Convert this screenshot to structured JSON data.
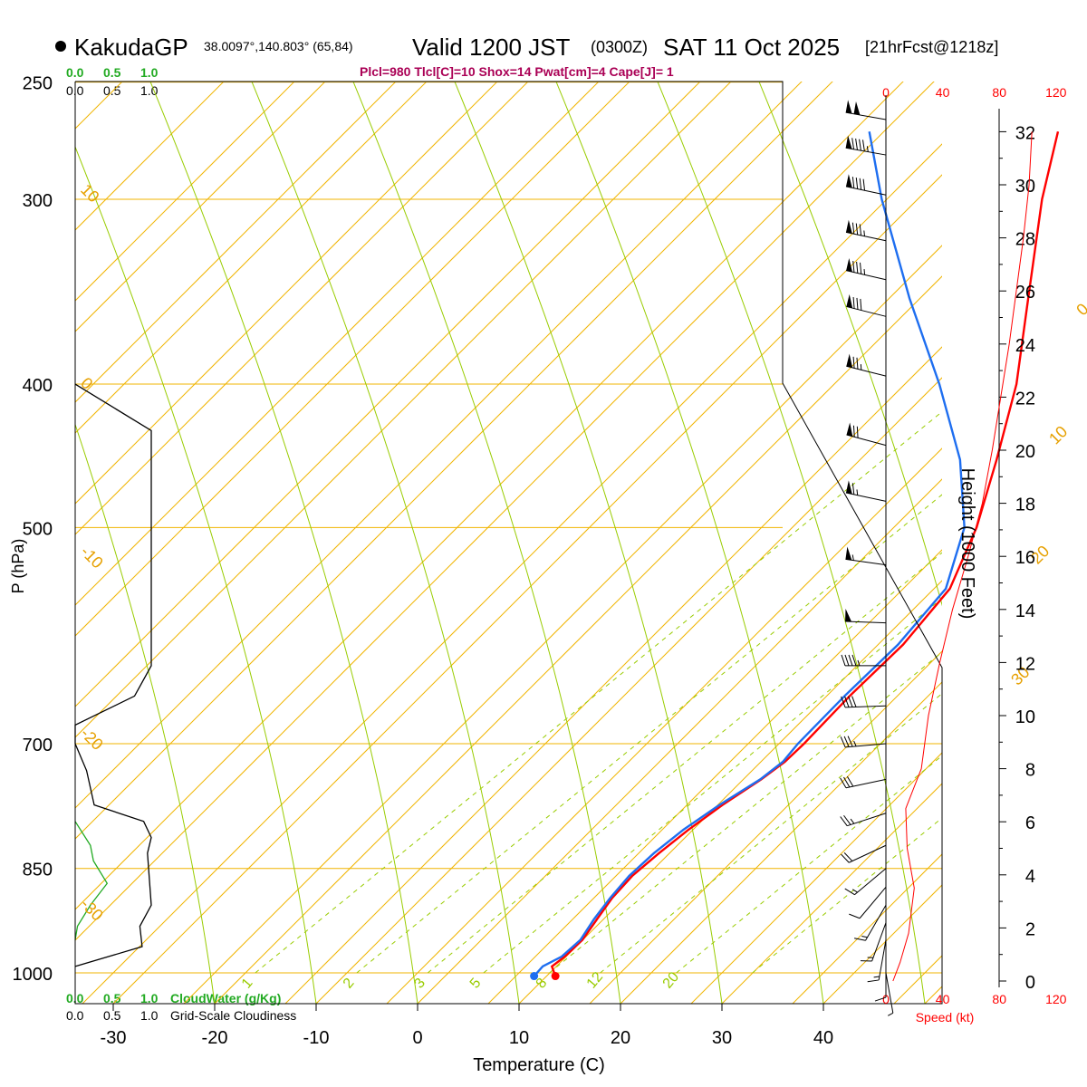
{
  "header": {
    "station_name": "KakudaGP",
    "station_coords": "38.0097°,140.803° (65,84)",
    "valid_label": "Valid 1200 JST",
    "utc_label": "(0300Z)",
    "date_label": "SAT 11 Oct 2025",
    "forecast_label": "[21hrFcst@1218z]",
    "indices": "Plcl=980 Tlcl[C]=10 Shox=14 Pwat[cm]=4 Cape[J]= 1"
  },
  "legend": {
    "cloudwater_ticks": [
      "0.0",
      "0.5",
      "1.0"
    ],
    "cloudiness_ticks": [
      "0.0",
      "0.5",
      "1.0"
    ],
    "cloudwater_label": "CloudWater (g/Kg)",
    "cloudiness_label": "Grid-Scale Cloudiness"
  },
  "colors": {
    "temperature": "#ff0000",
    "dewpoint": "#1e6ef0",
    "isotherm": "#f0b400",
    "mixing_ratio": "#99cc00",
    "cloudwater": "#22aa22",
    "cloudiness": "#000000",
    "speed": "#ff0000"
  },
  "chart_data": {
    "type": "line",
    "title": "Skew-T log-P sounding, KakudaGP",
    "xlabel": "Temperature (C)",
    "ylabel": "P (hPa)",
    "pressure_levels": [
      250,
      300,
      400,
      500,
      700,
      850,
      1000
    ],
    "pressure_tick_labels": [
      "250",
      "300",
      "400",
      "500",
      "700",
      "850",
      "1000"
    ],
    "temperature_ticks": [
      -30,
      -20,
      -10,
      0,
      10,
      20,
      30,
      40
    ],
    "temperature_tick_labels": [
      "-30",
      "-20",
      "-10",
      "0",
      "10",
      "20",
      "30",
      "40"
    ],
    "isotherm_labels": [
      {
        "text": "10",
        "temp": 10,
        "p": 296
      },
      {
        "text": "0",
        "temp": 0,
        "p": 400
      },
      {
        "text": "-10",
        "temp": -10,
        "p": 520
      },
      {
        "text": "-20",
        "temp": -20,
        "p": 690
      },
      {
        "text": "-30",
        "temp": -30,
        "p": 900
      },
      {
        "text": "0",
        "temp": 0,
        "p": 360
      },
      {
        "text": "10",
        "temp": 10,
        "p": 440
      },
      {
        "text": "20",
        "temp": 20,
        "p": 530
      },
      {
        "text": "30",
        "temp": 30,
        "p": 640
      }
    ],
    "mixing_ratio_labels": [
      "1",
      "2",
      "3",
      "5",
      "8",
      "12",
      "20"
    ],
    "series": [
      {
        "name": "Temperature",
        "color": "#ff0000",
        "points": [
          {
            "p": 1005,
            "t": 13.9
          },
          {
            "p": 990,
            "t": 12.6
          },
          {
            "p": 975,
            "t": 12.9
          },
          {
            "p": 950,
            "t": 13.0
          },
          {
            "p": 920,
            "t": 12.4
          },
          {
            "p": 890,
            "t": 11.8
          },
          {
            "p": 860,
            "t": 11.6
          },
          {
            "p": 830,
            "t": 12.0
          },
          {
            "p": 800,
            "t": 12.6
          },
          {
            "p": 770,
            "t": 13.5
          },
          {
            "p": 740,
            "t": 14.8
          },
          {
            "p": 720,
            "t": 15.4
          },
          {
            "p": 700,
            "t": 15.5
          },
          {
            "p": 650,
            "t": 15.3
          },
          {
            "p": 600,
            "t": 15.5
          },
          {
            "p": 550,
            "t": 14.6
          },
          {
            "p": 500,
            "t": 11.2
          },
          {
            "p": 450,
            "t": 6.5
          },
          {
            "p": 400,
            "t": 1.0
          },
          {
            "p": 350,
            "t": -6.3
          },
          {
            "p": 300,
            "t": -14.7
          },
          {
            "p": 270,
            "t": -19.8
          }
        ]
      },
      {
        "name": "Dewpoint",
        "color": "#1e6ef0",
        "points": [
          {
            "p": 1005,
            "t": 11.8
          },
          {
            "p": 990,
            "t": 11.7
          },
          {
            "p": 975,
            "t": 12.6
          },
          {
            "p": 950,
            "t": 12.8
          },
          {
            "p": 920,
            "t": 12.1
          },
          {
            "p": 890,
            "t": 11.6
          },
          {
            "p": 860,
            "t": 11.3
          },
          {
            "p": 830,
            "t": 11.5
          },
          {
            "p": 800,
            "t": 12.1
          },
          {
            "p": 770,
            "t": 13.2
          },
          {
            "p": 740,
            "t": 14.7
          },
          {
            "p": 720,
            "t": 15.2
          },
          {
            "p": 700,
            "t": 14.9
          },
          {
            "p": 650,
            "t": 14.8
          },
          {
            "p": 600,
            "t": 15.0
          },
          {
            "p": 550,
            "t": 14.2
          },
          {
            "p": 500,
            "t": 10.0
          },
          {
            "p": 450,
            "t": 2.9
          },
          {
            "p": 400,
            "t": -6.6
          },
          {
            "p": 350,
            "t": -18.0
          },
          {
            "p": 300,
            "t": -30.5
          },
          {
            "p": 270,
            "t": -38.4
          }
        ]
      }
    ],
    "cloudiness_profile": [
      {
        "p": 400,
        "v": 0.0
      },
      {
        "p": 430,
        "v": 1.0
      },
      {
        "p": 620,
        "v": 1.0
      },
      {
        "p": 650,
        "v": 0.78
      },
      {
        "p": 680,
        "v": 0.0
      },
      {
        "p": 700,
        "v": 0.0
      },
      {
        "p": 730,
        "v": 0.15
      },
      {
        "p": 770,
        "v": 0.25
      },
      {
        "p": 790,
        "v": 0.9
      },
      {
        "p": 810,
        "v": 1.0
      },
      {
        "p": 830,
        "v": 0.95
      },
      {
        "p": 900,
        "v": 1.0
      },
      {
        "p": 930,
        "v": 0.85
      },
      {
        "p": 960,
        "v": 0.88
      },
      {
        "p": 990,
        "v": 0.0
      }
    ],
    "cloudwater_profile": [
      {
        "p": 790,
        "v": 0.0
      },
      {
        "p": 820,
        "v": 0.2
      },
      {
        "p": 840,
        "v": 0.24
      },
      {
        "p": 870,
        "v": 0.42
      },
      {
        "p": 900,
        "v": 0.2
      },
      {
        "p": 930,
        "v": 0.03
      },
      {
        "p": 950,
        "v": 0.0
      }
    ],
    "height_axis": {
      "label": "Height (1000 Feet)",
      "ticks": [
        0,
        2,
        4,
        6,
        8,
        10,
        12,
        14,
        16,
        18,
        20,
        22,
        24,
        26,
        28,
        30,
        32
      ],
      "tick_labels": [
        "0",
        "2",
        "4",
        "6",
        "8",
        "10",
        "12",
        "14",
        "16",
        "18",
        "20",
        "22",
        "24",
        "26",
        "28",
        "30",
        "32"
      ]
    },
    "speed_axis": {
      "label": "Speed (kt)",
      "ticks": [
        0,
        40,
        80,
        120
      ],
      "tick_labels": [
        "0",
        "40",
        "80",
        "120"
      ]
    },
    "wind_speed_profile": [
      {
        "h": 0,
        "s": 5
      },
      {
        "h": 0.7,
        "s": 10
      },
      {
        "h": 1.8,
        "s": 16
      },
      {
        "h": 3.5,
        "s": 20
      },
      {
        "h": 5,
        "s": 15
      },
      {
        "h": 6.5,
        "s": 14
      },
      {
        "h": 8,
        "s": 25
      },
      {
        "h": 10,
        "s": 30
      },
      {
        "h": 12,
        "s": 38
      },
      {
        "h": 14,
        "s": 47
      },
      {
        "h": 16,
        "s": 58
      },
      {
        "h": 18,
        "s": 68
      },
      {
        "h": 20,
        "s": 75
      },
      {
        "h": 22,
        "s": 81
      },
      {
        "h": 24,
        "s": 87
      },
      {
        "h": 26,
        "s": 92
      },
      {
        "h": 28,
        "s": 97
      },
      {
        "h": 30,
        "s": 101
      },
      {
        "h": 32,
        "s": 103
      }
    ],
    "wind_barbs": [
      {
        "p": 265,
        "dir": 280,
        "spd": 100
      },
      {
        "p": 280,
        "dir": 280,
        "spd": 95
      },
      {
        "p": 298,
        "dir": 282,
        "spd": 92
      },
      {
        "p": 320,
        "dir": 282,
        "spd": 88
      },
      {
        "p": 340,
        "dir": 283,
        "spd": 85
      },
      {
        "p": 360,
        "dir": 284,
        "spd": 82
      },
      {
        "p": 395,
        "dir": 284,
        "spd": 78
      },
      {
        "p": 440,
        "dir": 285,
        "spd": 72
      },
      {
        "p": 480,
        "dir": 282,
        "spd": 65
      },
      {
        "p": 530,
        "dir": 278,
        "spd": 58
      },
      {
        "p": 580,
        "dir": 272,
        "spd": 50
      },
      {
        "p": 620,
        "dir": 270,
        "spd": 45
      },
      {
        "p": 660,
        "dir": 268,
        "spd": 40
      },
      {
        "p": 700,
        "dir": 265,
        "spd": 35
      },
      {
        "p": 740,
        "dir": 258,
        "spd": 30
      },
      {
        "p": 780,
        "dir": 252,
        "spd": 25
      },
      {
        "p": 820,
        "dir": 245,
        "spd": 20
      },
      {
        "p": 850,
        "dir": 230,
        "spd": 15
      },
      {
        "p": 875,
        "dir": 220,
        "spd": 14
      },
      {
        "p": 900,
        "dir": 210,
        "spd": 15
      },
      {
        "p": 925,
        "dir": 200,
        "spd": 16
      },
      {
        "p": 950,
        "dir": 190,
        "spd": 15
      },
      {
        "p": 975,
        "dir": 180,
        "spd": 12
      },
      {
        "p": 1000,
        "dir": 170,
        "spd": 8
      }
    ]
  }
}
